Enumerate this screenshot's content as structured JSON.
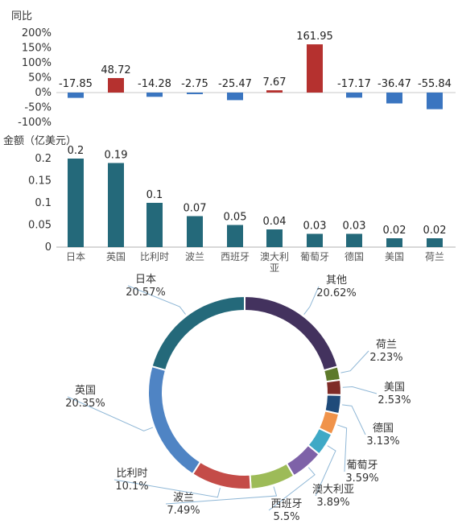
{
  "chart_data": [
    {
      "type": "bar",
      "ylabel": "同比",
      "ylim": [
        -100,
        200
      ],
      "yticks": [
        "200%",
        "150%",
        "100%",
        "50%",
        "0%",
        "-50%",
        "-100%"
      ],
      "categories": [
        "日本",
        "英国",
        "比利时",
        "波兰",
        "西班牙",
        "澳大利亚",
        "葡萄牙",
        "德国",
        "美国",
        "荷兰"
      ],
      "values": [
        -17.85,
        48.72,
        -14.28,
        -2.75,
        -25.47,
        7.67,
        161.95,
        -17.17,
        -36.47,
        -55.84
      ],
      "value_labels": [
        "-17.85",
        "48.72",
        "-14.28",
        "-2.75",
        "-25.47",
        "7.67",
        "161.95",
        "-17.17",
        "-36.47",
        "-55.84"
      ],
      "colors": {
        "positive": "#b5312f",
        "negative": "#3a75c0"
      }
    },
    {
      "type": "bar",
      "ylabel": "金额（亿美元）",
      "ylim": [
        0,
        0.2
      ],
      "yticks": [
        "0.2",
        "0.15",
        "0.1",
        "0.05",
        "0"
      ],
      "categories": [
        "日本",
        "英国",
        "比利时",
        "波兰",
        "西班牙",
        "澳大利亚",
        "葡萄牙",
        "德国",
        "美国",
        "荷兰"
      ],
      "values": [
        0.2,
        0.19,
        0.1,
        0.07,
        0.05,
        0.04,
        0.03,
        0.03,
        0.02,
        0.02
      ],
      "value_labels": [
        "0.2",
        "0.19",
        "0.1",
        "0.07",
        "0.05",
        "0.04",
        "0.03",
        "0.03",
        "0.02",
        "0.02"
      ],
      "colors": {
        "bar": "#24697a"
      }
    },
    {
      "type": "pie",
      "style": "donut",
      "slices": [
        {
          "name": "其他",
          "pct_label": "20.62%",
          "value": 20.62,
          "color": "#43325e"
        },
        {
          "name": "荷兰",
          "pct_label": "2.23%",
          "value": 2.23,
          "color": "#5d7a2b"
        },
        {
          "name": "美国",
          "pct_label": "2.53%",
          "value": 2.53,
          "color": "#7f2b27"
        },
        {
          "name": "德国",
          "pct_label": "3.13%",
          "value": 3.13,
          "color": "#1f4b7a"
        },
        {
          "name": "葡萄牙",
          "pct_label": "3.59%",
          "value": 3.59,
          "color": "#f0934a"
        },
        {
          "name": "澳大利亚",
          "pct_label": "3.89%",
          "value": 3.89,
          "color": "#3fa9c6"
        },
        {
          "name": "西班牙",
          "pct_label": "5.5%",
          "value": 5.5,
          "color": "#7e62a8"
        },
        {
          "name": "波兰",
          "pct_label": "7.49%",
          "value": 7.49,
          "color": "#9dbb58"
        },
        {
          "name": "比利时",
          "pct_label": "10.1%",
          "value": 10.1,
          "color": "#c44c48"
        },
        {
          "name": "英国",
          "pct_label": "20.35%",
          "value": 20.35,
          "color": "#4f84c4"
        },
        {
          "name": "日本",
          "pct_label": "20.57%",
          "value": 20.57,
          "color": "#24697a"
        }
      ],
      "leader_color": "#8fb7d6"
    }
  ]
}
